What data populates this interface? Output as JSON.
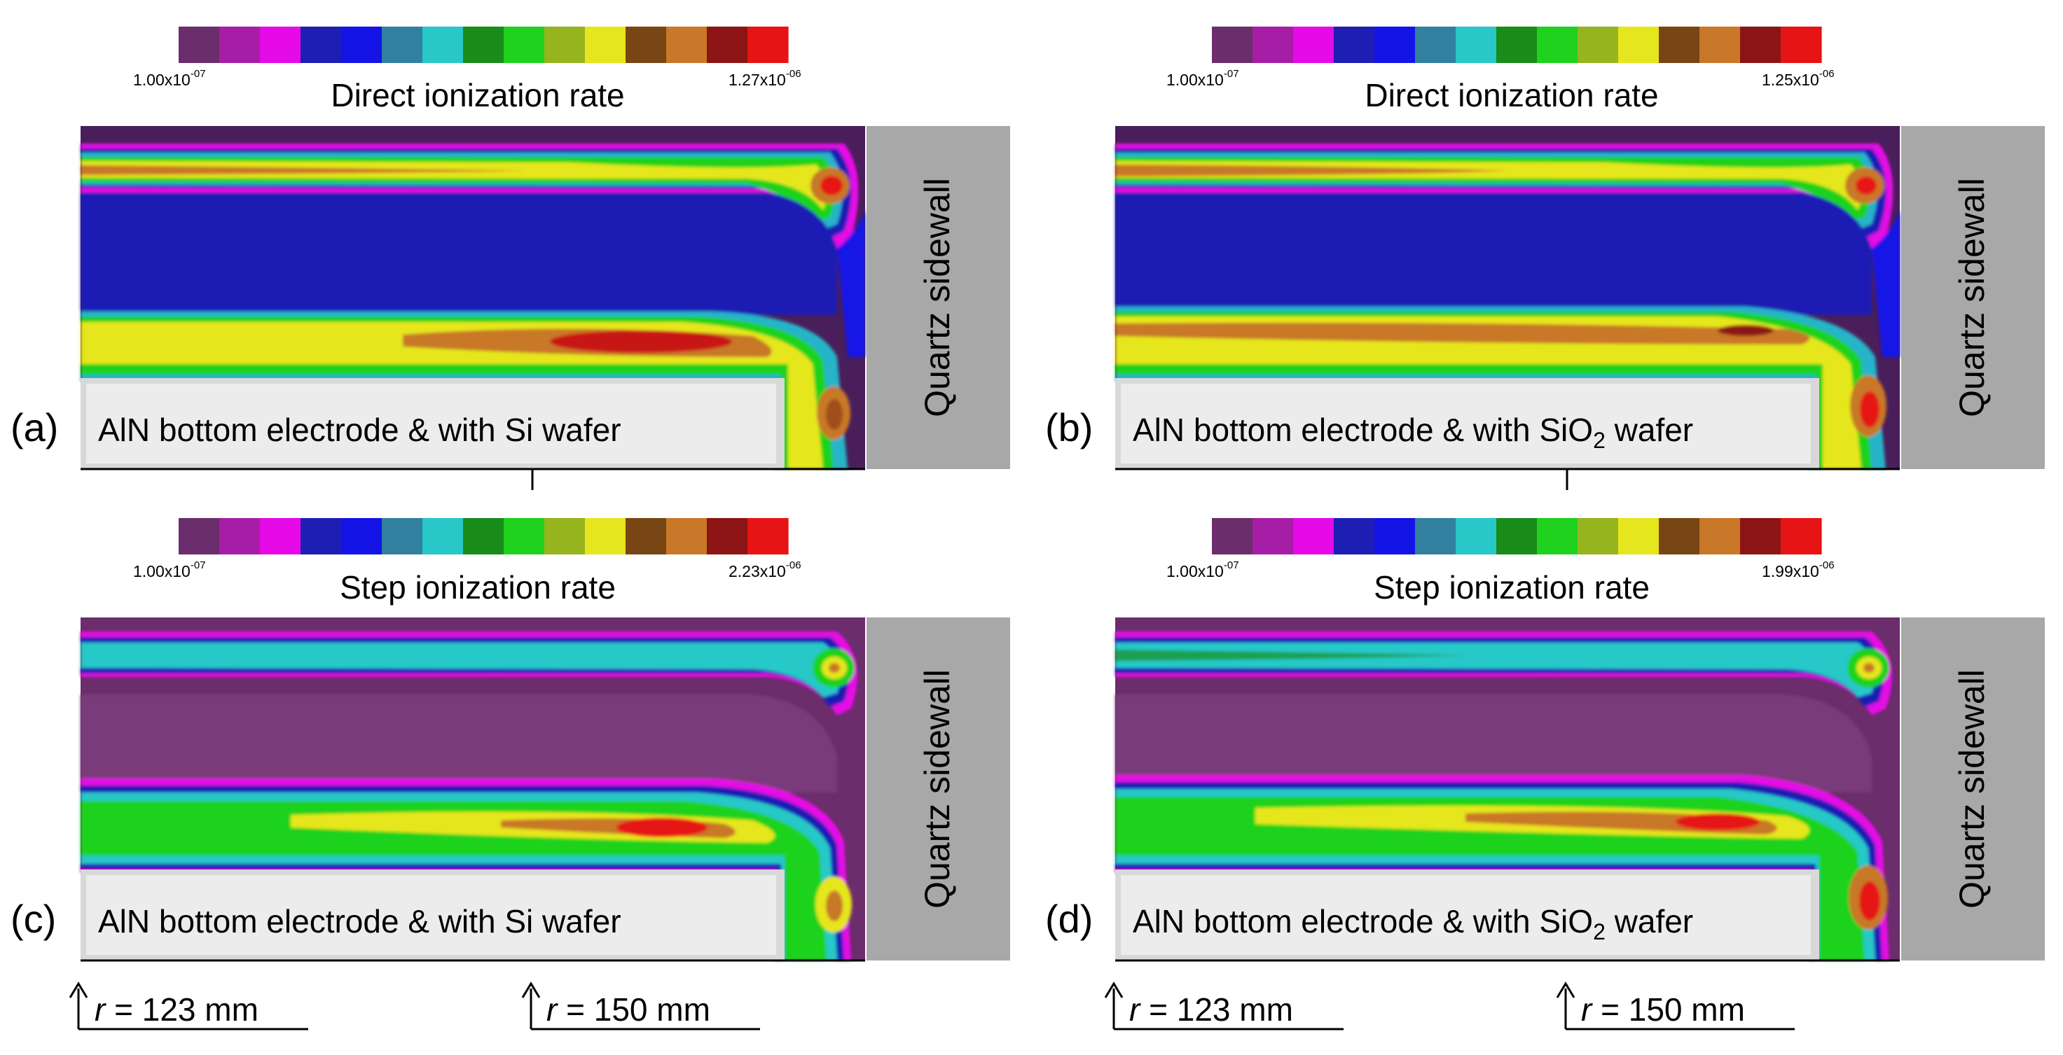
{
  "colorbar_colors": [
    "#6b2d6b",
    "#a61ea6",
    "#e60ae6",
    "#1e1eb4",
    "#1414e6",
    "#3280a0",
    "#28c8c8",
    "#198c19",
    "#1ed21e",
    "#96b41e",
    "#e6e61e",
    "#784614",
    "#c87828",
    "#8c1414",
    "#e61414"
  ],
  "panels": [
    {
      "label": "(a)",
      "cb_min": "1.00x10",
      "cb_min_exp": "-07",
      "cb_max": "1.27x10",
      "cb_max_exp": "-06",
      "title": "Direct ionization rate",
      "caption": "AlN bottom electrode & with Si wafer",
      "caption_sub": "",
      "caption_end": "",
      "sidewall": "Quartz sidewall"
    },
    {
      "label": "(b)",
      "cb_min": "1.00x10",
      "cb_min_exp": "-07",
      "cb_max": "1.25x10",
      "cb_max_exp": "-06",
      "title": "Direct ionization rate",
      "caption": "AlN bottom electrode & with SiO",
      "caption_sub": "2",
      "caption_end": " wafer",
      "sidewall": "Quartz sidewall"
    },
    {
      "label": "(c)",
      "cb_min": "1.00x10",
      "cb_min_exp": "-07",
      "cb_max": "2.23x10",
      "cb_max_exp": "-06",
      "title": "Step ionization rate",
      "caption": "AlN bottom electrode & with Si wafer",
      "caption_sub": "",
      "caption_end": "",
      "sidewall": "Quartz sidewall"
    },
    {
      "label": "(d)",
      "cb_min": "1.00x10",
      "cb_min_exp": "-07",
      "cb_max": "1.99x10",
      "cb_max_exp": "-06",
      "title": "Step ionization rate",
      "caption": "AlN bottom electrode & with SiO",
      "caption_sub": "2",
      "caption_end": " wafer",
      "sidewall": "Quartz sidewall"
    }
  ],
  "annotations": {
    "left_r": "r",
    "left_value": " = 123 mm",
    "right_r": "r",
    "right_value": " = 150 mm"
  }
}
